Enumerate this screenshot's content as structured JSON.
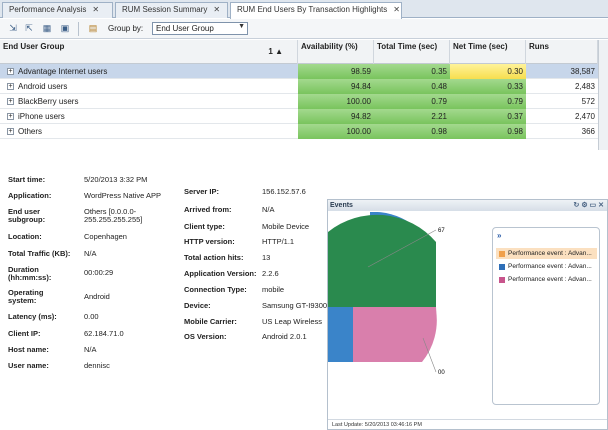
{
  "tabs": [
    {
      "label": "Performance Analysis",
      "active": false
    },
    {
      "label": "RUM Session Summary",
      "active": false
    },
    {
      "label": "RUM End Users By Transaction Highlights",
      "active": true
    }
  ],
  "toolbar": {
    "group_by_label": "Group by:",
    "group_by_value": "End User Group"
  },
  "grid": {
    "columns": [
      "End User Group",
      "Availability (%)",
      "Total Time (sec)",
      "Net Time (sec)",
      "Runs"
    ],
    "sort_indicator": "1 ▲",
    "rows": [
      {
        "group": "Advantage Internet users",
        "availability": "98.59",
        "total": "0.35",
        "net": "0.30",
        "runs": "38,587",
        "selected": true,
        "net_status": "yellow"
      },
      {
        "group": "Android users",
        "availability": "94.84",
        "total": "0.48",
        "net": "0.33",
        "runs": "2,483",
        "selected": false,
        "net_status": "green"
      },
      {
        "group": "BlackBerry users",
        "availability": "100.00",
        "total": "0.79",
        "net": "0.79",
        "runs": "572",
        "selected": false,
        "net_status": "green"
      },
      {
        "group": "iPhone users",
        "availability": "94.82",
        "total": "2.21",
        "net": "0.37",
        "runs": "2,470",
        "selected": false,
        "net_status": "green"
      },
      {
        "group": "Others",
        "availability": "100.00",
        "total": "0.98",
        "net": "0.98",
        "runs": "366",
        "selected": false,
        "net_status": "green"
      }
    ]
  },
  "details_left": [
    {
      "label": "Start time:",
      "value": "5/20/2013 3:32 PM"
    },
    {
      "label": "Application:",
      "value": "WordPress Native APP"
    },
    {
      "label": "End user subgroup:",
      "value": "Others [0.0.0.0-255.255.255.255]"
    },
    {
      "label": "Location:",
      "value": "Copenhagen"
    },
    {
      "label": "Total Traffic (KB):",
      "value": "N/A"
    },
    {
      "label": "Duration (hh:mm:ss):",
      "value": "00:00:29"
    },
    {
      "label": "Operating system:",
      "value": "Android"
    },
    {
      "label": "Latency (ms):",
      "value": "0.00"
    },
    {
      "label": "Client IP:",
      "value": "62.184.71.0"
    },
    {
      "label": "Host name:",
      "value": "N/A"
    },
    {
      "label": "User name:",
      "value": "dennisc"
    }
  ],
  "details_right": [
    {
      "label": "Server IP:",
      "value": "156.152.57.6"
    },
    {
      "label": "Arrived from:",
      "value": "N/A"
    },
    {
      "label": "Client type:",
      "value": "Mobile Device"
    },
    {
      "label": "HTTP version:",
      "value": "HTTP/1.1"
    },
    {
      "label": "Total action hits:",
      "value": "13"
    },
    {
      "label": "Application Version:",
      "value": "2.2.6"
    },
    {
      "label": "Connection Type:",
      "value": "mobile"
    },
    {
      "label": "Device:",
      "value": "Samsung GT-I9300"
    },
    {
      "label": "Mobile Carrier:",
      "value": "US Leap Wireless"
    },
    {
      "label": "OS Version:",
      "value": "Android 2.0.1"
    }
  ],
  "events_panel": {
    "title": "Events",
    "legend_toggle": "»",
    "legend": [
      {
        "label": "Performance event : Advan...",
        "color": "#f0a04b"
      },
      {
        "label": "Performance event : Advan...",
        "color": "#2e6fb8"
      },
      {
        "label": "Performance event : Advan...",
        "color": "#c8548c"
      }
    ],
    "pie_labels": [
      "67",
      "00"
    ],
    "footer": "Last Update: 5/20/2013 03:46:16 PM"
  },
  "colors": {
    "grid_green": "#79c45d",
    "grid_yellow": "#f6de4f",
    "selected_row": "#c7d6ea",
    "pie_green": "#2a8a4e",
    "pie_blue": "#3a84c9",
    "pie_pink": "#d97fac"
  }
}
